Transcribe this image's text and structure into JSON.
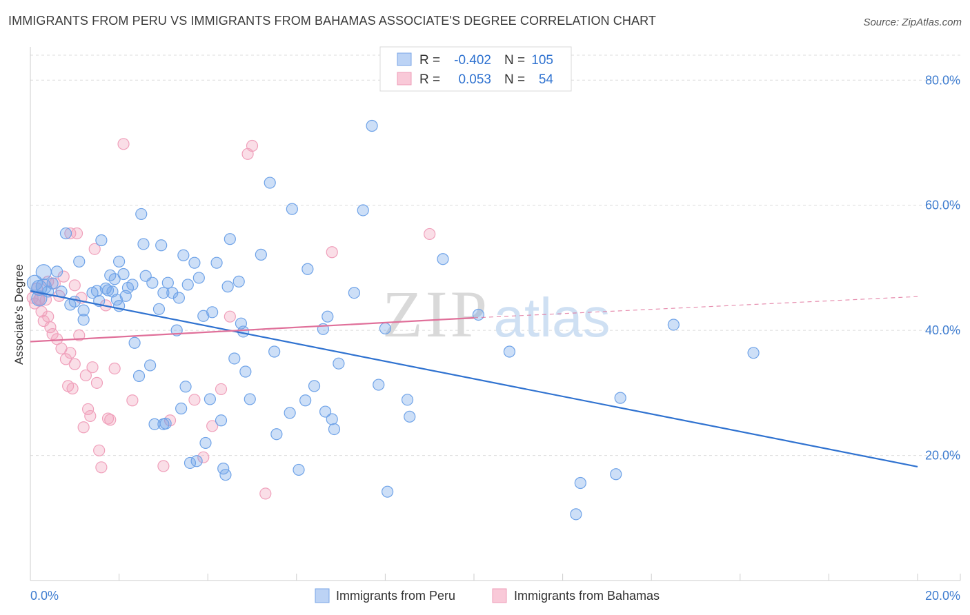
{
  "title": "IMMIGRANTS FROM PERU VS IMMIGRANTS FROM BAHAMAS ASSOCIATE'S DEGREE CORRELATION CHART",
  "source": "Source: ZipAtlas.com",
  "watermark": {
    "zip": "ZIP",
    "atlas": "atlas"
  },
  "legend_box": {
    "rows": [
      {
        "r_label": "R =",
        "r_value": "-0.402",
        "n_label": "N =",
        "n_value": "105"
      },
      {
        "r_label": "R =",
        "r_value": "0.053",
        "n_label": "N =",
        "n_value": "54"
      }
    ]
  },
  "bottom_legend": [
    "Immigrants from Peru",
    "Immigrants from Bahamas"
  ],
  "colors": {
    "peru": "#6fa3e8",
    "peru_line": "#2f72d0",
    "bahamas": "#f0a0bb",
    "bahamas_line": "#e0709a",
    "axis_text": "#3f7dd0",
    "grid": "#dcdcdc"
  },
  "chart_data": {
    "type": "scatter",
    "title": "IMMIGRANTS FROM PERU VS IMMIGRANTS FROM BAHAMAS ASSOCIATE'S DEGREE CORRELATION CHART",
    "xlabel": "",
    "ylabel": "Associate's Degree",
    "xlim": [
      0,
      20
    ],
    "ylim": [
      0,
      84
    ],
    "x_ticks": [
      "0.0%",
      "20.0%"
    ],
    "y_ticks": [
      {
        "value": 20,
        "label": "20.0%"
      },
      {
        "value": 40,
        "label": "40.0%"
      },
      {
        "value": 60,
        "label": "60.0%"
      },
      {
        "value": 80,
        "label": "80.0%"
      }
    ],
    "grid": true,
    "legend_position": "bottom",
    "series": [
      {
        "name": "Immigrants from Peru",
        "trend": {
          "x0": 0,
          "y0": 46.3,
          "x1": 20,
          "y1": 18.2
        },
        "points": [
          [
            0.1,
            47.6
          ],
          [
            0.2,
            46.8
          ],
          [
            0.3,
            49.3
          ],
          [
            0.3,
            47.0
          ],
          [
            0.4,
            46.2
          ],
          [
            0.2,
            45.1
          ],
          [
            0.5,
            47.5
          ],
          [
            0.6,
            49.4
          ],
          [
            0.7,
            46.2
          ],
          [
            0.8,
            55.5
          ],
          [
            0.9,
            44.1
          ],
          [
            1.0,
            44.6
          ],
          [
            1.1,
            51.0
          ],
          [
            1.2,
            43.2
          ],
          [
            1.2,
            41.7
          ],
          [
            1.4,
            46.0
          ],
          [
            1.5,
            46.3
          ],
          [
            1.55,
            44.7
          ],
          [
            1.6,
            54.4
          ],
          [
            1.7,
            46.7
          ],
          [
            1.75,
            46.4
          ],
          [
            1.8,
            48.8
          ],
          [
            1.85,
            46.2
          ],
          [
            1.9,
            48.2
          ],
          [
            1.95,
            44.9
          ],
          [
            2.0,
            51.0
          ],
          [
            2.0,
            43.9
          ],
          [
            2.1,
            49.0
          ],
          [
            2.15,
            45.5
          ],
          [
            2.2,
            46.8
          ],
          [
            2.3,
            47.3
          ],
          [
            2.35,
            38.0
          ],
          [
            2.45,
            32.7
          ],
          [
            2.5,
            58.6
          ],
          [
            2.55,
            53.8
          ],
          [
            2.6,
            48.7
          ],
          [
            2.7,
            34.4
          ],
          [
            2.75,
            47.6
          ],
          [
            2.8,
            25.0
          ],
          [
            2.9,
            43.4
          ],
          [
            2.95,
            53.6
          ],
          [
            3.0,
            25.0
          ],
          [
            3.05,
            25.1
          ],
          [
            3.1,
            47.6
          ],
          [
            3.2,
            46.0
          ],
          [
            3.3,
            40.0
          ],
          [
            3.35,
            45.2
          ],
          [
            3.4,
            27.5
          ],
          [
            3.45,
            52.0
          ],
          [
            3.5,
            31.0
          ],
          [
            3.55,
            47.3
          ],
          [
            3.6,
            18.8
          ],
          [
            3.7,
            50.8
          ],
          [
            3.75,
            19.1
          ],
          [
            3.8,
            48.4
          ],
          [
            3.9,
            42.3
          ],
          [
            3.95,
            22.0
          ],
          [
            4.05,
            29.0
          ],
          [
            4.1,
            42.9
          ],
          [
            4.2,
            50.8
          ],
          [
            4.3,
            25.6
          ],
          [
            4.35,
            17.9
          ],
          [
            4.4,
            16.9
          ],
          [
            4.45,
            47.0
          ],
          [
            4.5,
            54.6
          ],
          [
            4.6,
            35.5
          ],
          [
            4.7,
            47.8
          ],
          [
            4.75,
            41.1
          ],
          [
            4.8,
            39.8
          ],
          [
            4.85,
            33.4
          ],
          [
            4.95,
            29.0
          ],
          [
            5.2,
            52.1
          ],
          [
            5.4,
            63.6
          ],
          [
            5.5,
            36.6
          ],
          [
            5.55,
            23.4
          ],
          [
            5.85,
            26.8
          ],
          [
            5.9,
            59.4
          ],
          [
            6.05,
            17.7
          ],
          [
            6.2,
            28.8
          ],
          [
            6.25,
            49.8
          ],
          [
            6.4,
            31.1
          ],
          [
            6.6,
            40.2
          ],
          [
            6.65,
            27.0
          ],
          [
            6.7,
            42.2
          ],
          [
            6.8,
            25.8
          ],
          [
            6.85,
            24.2
          ],
          [
            6.95,
            34.7
          ],
          [
            7.5,
            59.2
          ],
          [
            7.7,
            72.7
          ],
          [
            7.85,
            31.3
          ],
          [
            8.0,
            40.3
          ],
          [
            8.05,
            14.2
          ],
          [
            8.5,
            28.9
          ],
          [
            8.55,
            26.2
          ],
          [
            9.3,
            51.4
          ],
          [
            10.1,
            42.5
          ],
          [
            10.8,
            36.6
          ],
          [
            12.4,
            15.6
          ],
          [
            12.3,
            10.6
          ],
          [
            13.2,
            17.0
          ],
          [
            13.3,
            29.2
          ],
          [
            14.5,
            40.9
          ],
          [
            16.3,
            36.4
          ],
          [
            7.3,
            46.0
          ],
          [
            3.0,
            46.0
          ]
        ]
      },
      {
        "name": "Immigrants from Bahamas",
        "trend": {
          "x0": 0,
          "y0": 38.2,
          "x1": 10,
          "y1": 42.0,
          "x_dash_end": 20,
          "y_dash_end": 45.4
        },
        "points": [
          [
            0.05,
            45.2
          ],
          [
            0.1,
            44.3
          ],
          [
            0.15,
            46.7
          ],
          [
            0.2,
            45.0
          ],
          [
            0.25,
            43.0
          ],
          [
            0.3,
            41.5
          ],
          [
            0.35,
            44.9
          ],
          [
            0.4,
            42.2
          ],
          [
            0.45,
            40.5
          ],
          [
            0.5,
            39.4
          ],
          [
            0.55,
            47.5
          ],
          [
            0.6,
            38.6
          ],
          [
            0.65,
            45.5
          ],
          [
            0.7,
            37.1
          ],
          [
            0.75,
            48.6
          ],
          [
            0.8,
            35.4
          ],
          [
            0.85,
            31.1
          ],
          [
            0.9,
            36.4
          ],
          [
            0.95,
            30.7
          ],
          [
            1.0,
            34.6
          ],
          [
            1.05,
            55.5
          ],
          [
            1.1,
            39.2
          ],
          [
            1.15,
            45.2
          ],
          [
            1.2,
            24.5
          ],
          [
            1.25,
            32.8
          ],
          [
            1.3,
            27.4
          ],
          [
            1.35,
            26.3
          ],
          [
            1.4,
            34.1
          ],
          [
            1.45,
            53.0
          ],
          [
            1.5,
            31.6
          ],
          [
            1.55,
            20.8
          ],
          [
            1.6,
            18.1
          ],
          [
            1.7,
            44.0
          ],
          [
            1.75,
            25.9
          ],
          [
            1.8,
            25.7
          ],
          [
            1.9,
            33.9
          ],
          [
            2.1,
            69.8
          ],
          [
            2.3,
            28.8
          ],
          [
            3.0,
            18.3
          ],
          [
            3.15,
            25.6
          ],
          [
            3.7,
            28.9
          ],
          [
            3.9,
            19.7
          ],
          [
            4.1,
            24.7
          ],
          [
            4.3,
            30.6
          ],
          [
            4.5,
            42.2
          ],
          [
            4.9,
            68.2
          ],
          [
            5.0,
            69.5
          ],
          [
            5.3,
            13.9
          ],
          [
            9.0,
            55.4
          ],
          [
            6.8,
            52.5
          ],
          [
            0.4,
            47.8
          ],
          [
            0.9,
            55.5
          ],
          [
            0.2,
            44.9
          ],
          [
            1.0,
            47.2
          ]
        ]
      }
    ]
  }
}
